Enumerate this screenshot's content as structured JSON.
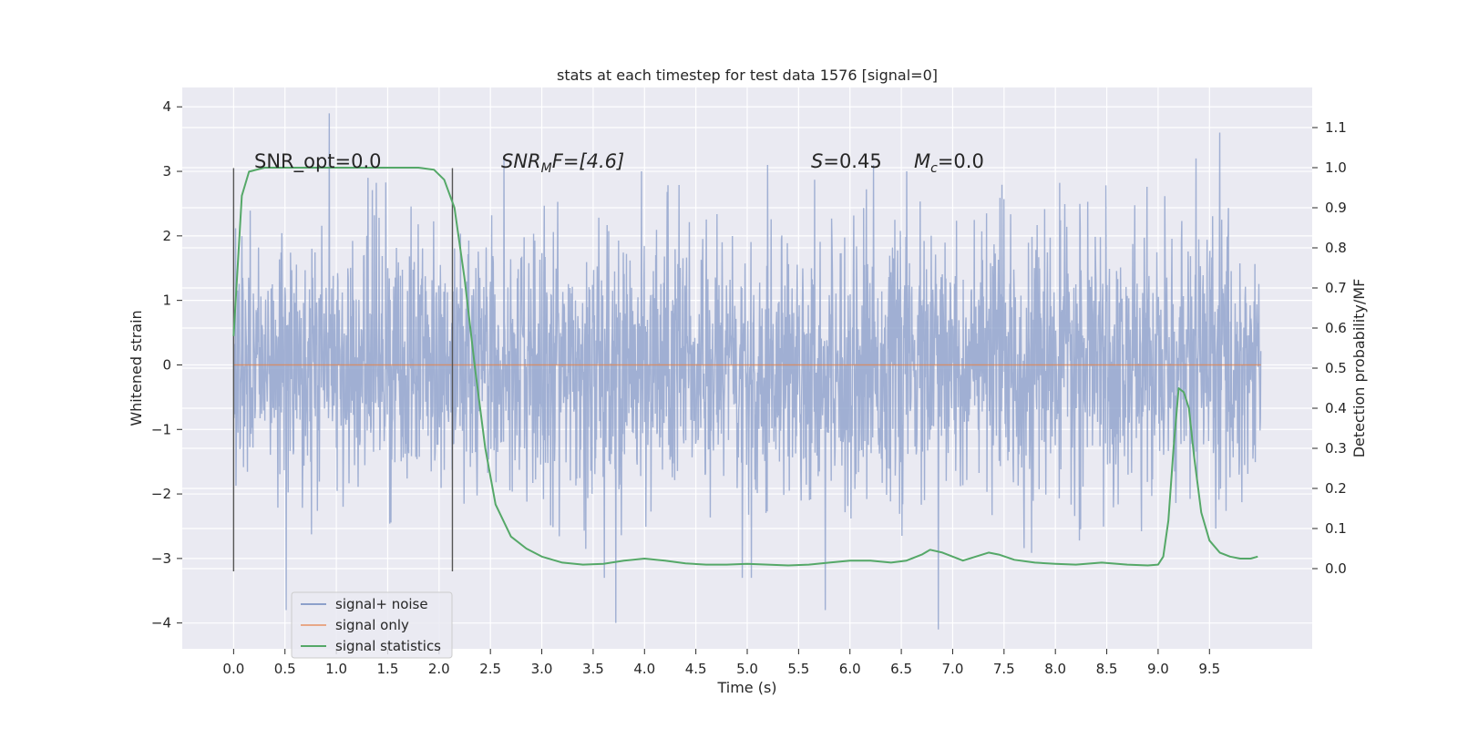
{
  "chart_data": {
    "type": "line",
    "title": "stats at each timestep for test data 1576 [signal=0]",
    "xlabel": "Time (s)",
    "ylabel": "Whitened strain",
    "y2label": "Detection probability/MF",
    "xlim": [
      -0.5,
      10.5
    ],
    "ylim": [
      -4.4,
      4.3
    ],
    "y2lim": [
      -0.2,
      1.2
    ],
    "grid": true,
    "legend_position": "lower-left",
    "x_ticks": [
      0.0,
      0.5,
      1.0,
      1.5,
      2.0,
      2.5,
      3.0,
      3.5,
      4.0,
      4.5,
      5.0,
      5.5,
      6.0,
      6.5,
      7.0,
      7.5,
      8.0,
      8.5,
      9.0,
      9.5
    ],
    "x_tick_labels": [
      "0.0",
      "0.5",
      "1.0",
      "1.5",
      "2.0",
      "2.5",
      "3.0",
      "3.5",
      "4.0",
      "4.5",
      "5.0",
      "5.5",
      "6.0",
      "6.5",
      "7.0",
      "7.5",
      "8.0",
      "8.5",
      "9.0",
      "9.5"
    ],
    "y_ticks": [
      4,
      3,
      2,
      1,
      0,
      -1,
      -2,
      -3,
      -4
    ],
    "y_tick_labels": [
      "4",
      "3",
      "2",
      "1",
      "0",
      "−1",
      "−2",
      "−3",
      "−4"
    ],
    "y2_ticks": [
      1.1,
      1.0,
      0.9,
      0.8,
      0.7,
      0.6,
      0.5,
      0.4,
      0.3,
      0.2,
      0.1,
      0.0
    ],
    "y2_tick_labels": [
      "1.1",
      "1.0",
      "0.9",
      "0.8",
      "0.7",
      "0.6",
      "0.5",
      "0.4",
      "0.3",
      "0.2",
      "0.1",
      "0.0"
    ],
    "annotations": {
      "snr_opt": "SNR_opt=0.0",
      "snr_mf_base": "SNR",
      "snr_mf_sub": "M",
      "snr_mf_rest": "F=[4.6]",
      "s_var": "S",
      "s_val": "=0.45",
      "mc_var": "M",
      "mc_sub": "c",
      "mc_val": "=0.0"
    },
    "vertical_markers": [
      0.0,
      2.13
    ],
    "series": [
      {
        "name": "signal+ noise",
        "color": "#8da0cb",
        "axis": "left",
        "x_range": [
          0.0,
          10.0
        ],
        "noise_std": 1.0,
        "peaks": [
          [
            0.93,
            3.9
          ],
          [
            1.31,
            2.9
          ],
          [
            2.63,
            3.2
          ],
          [
            5.2,
            3.1
          ],
          [
            6.23,
            3.1
          ],
          [
            9.6,
            3.6
          ],
          [
            9.37,
            3.2
          ],
          [
            0.51,
            -3.8
          ],
          [
            3.72,
            -4.0
          ],
          [
            6.86,
            -4.1
          ],
          [
            5.76,
            -3.8
          ],
          [
            3.61,
            -3.3
          ],
          [
            4.95,
            -3.3
          ],
          [
            5.04,
            -3.3
          ]
        ]
      },
      {
        "name": "signal only",
        "color": "#dd8452",
        "axis": "left",
        "x": [
          0.0,
          10.0
        ],
        "y": [
          0.0,
          0.0
        ]
      },
      {
        "name": "signal statistics",
        "color": "#55a868",
        "axis": "right",
        "x": [
          0.0,
          0.08,
          0.15,
          0.3,
          0.5,
          1.0,
          1.5,
          1.8,
          1.95,
          2.05,
          2.15,
          2.25,
          2.35,
          2.45,
          2.55,
          2.7,
          2.85,
          3.0,
          3.2,
          3.4,
          3.6,
          3.8,
          4.0,
          4.2,
          4.4,
          4.6,
          4.8,
          5.0,
          5.2,
          5.4,
          5.6,
          5.8,
          6.0,
          6.2,
          6.4,
          6.55,
          6.7,
          6.78,
          6.9,
          7.0,
          7.1,
          7.25,
          7.35,
          7.45,
          7.6,
          7.8,
          8.0,
          8.2,
          8.45,
          8.7,
          8.9,
          9.0,
          9.05,
          9.1,
          9.15,
          9.2,
          9.25,
          9.3,
          9.35,
          9.42,
          9.5,
          9.6,
          9.7,
          9.8,
          9.9,
          9.97
        ],
        "y": [
          0.58,
          0.93,
          0.99,
          1.0,
          1.0,
          1.0,
          1.0,
          1.0,
          0.995,
          0.97,
          0.9,
          0.72,
          0.5,
          0.3,
          0.16,
          0.08,
          0.05,
          0.03,
          0.015,
          0.01,
          0.012,
          0.02,
          0.025,
          0.02,
          0.013,
          0.01,
          0.01,
          0.012,
          0.01,
          0.008,
          0.01,
          0.015,
          0.02,
          0.02,
          0.015,
          0.02,
          0.035,
          0.047,
          0.04,
          0.03,
          0.02,
          0.032,
          0.04,
          0.035,
          0.022,
          0.015,
          0.012,
          0.01,
          0.015,
          0.01,
          0.008,
          0.01,
          0.03,
          0.12,
          0.3,
          0.45,
          0.44,
          0.4,
          0.28,
          0.14,
          0.07,
          0.04,
          0.03,
          0.025,
          0.025,
          0.03
        ]
      }
    ]
  }
}
